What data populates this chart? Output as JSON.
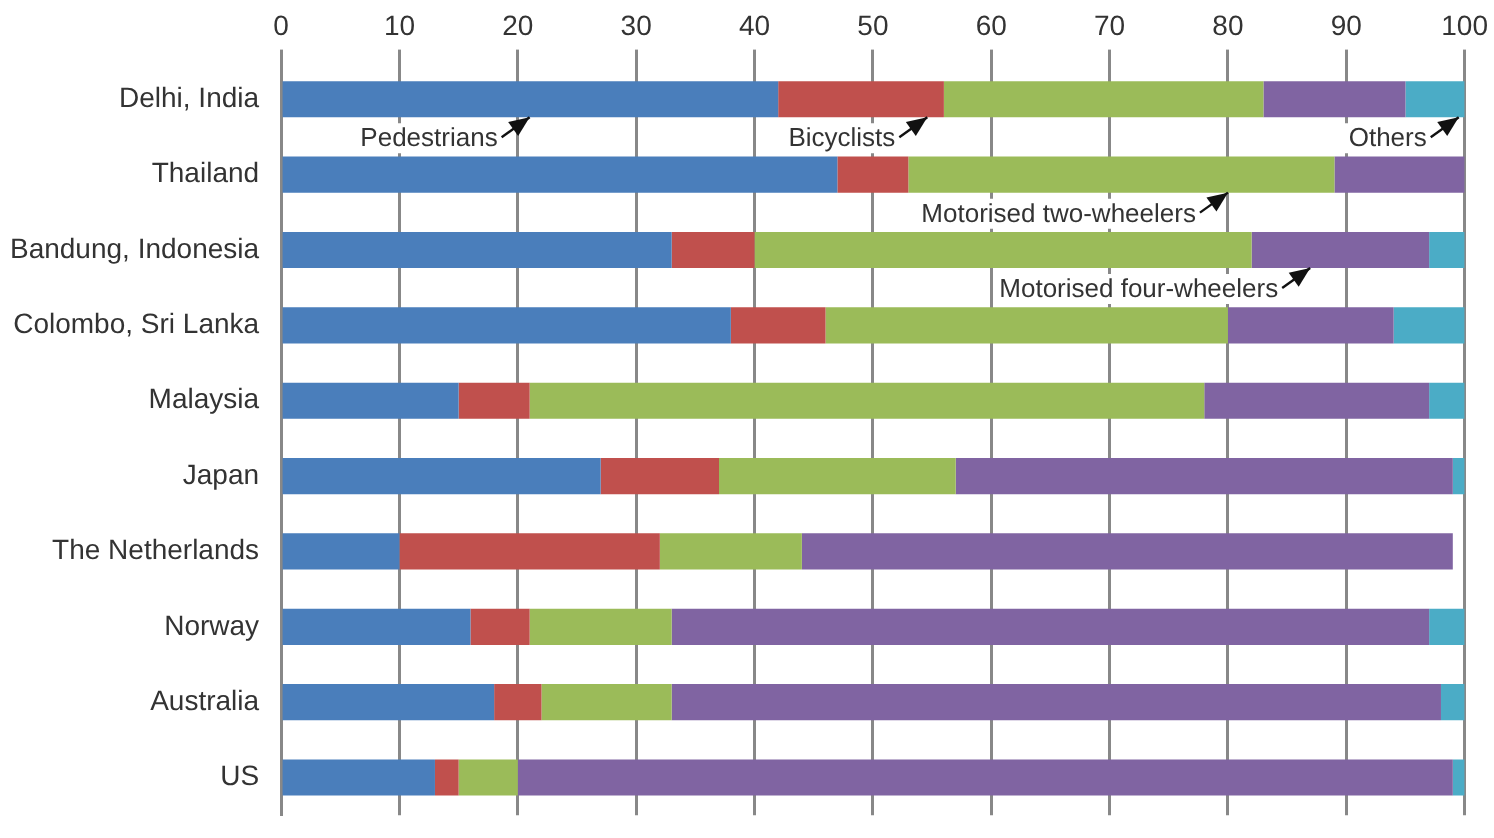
{
  "chart_data": {
    "type": "bar",
    "orientation": "horizontal",
    "stacked": true,
    "categories": [
      "Delhi, India",
      "Thailand",
      "Bandung, Indonesia",
      "Colombo, Sri Lanka",
      "Malaysia",
      "Japan",
      "The Netherlands",
      "Norway",
      "Australia",
      "US"
    ],
    "series": [
      {
        "name": "Pedestrians",
        "color": "#4a7ebb",
        "values": [
          42,
          47,
          33,
          38,
          15,
          27,
          10,
          16,
          18,
          13
        ]
      },
      {
        "name": "Bicyclists",
        "color": "#c0504d",
        "values": [
          14,
          6,
          7,
          8,
          6,
          10,
          22,
          5,
          4,
          2
        ]
      },
      {
        "name": "Motorised two-wheelers",
        "color": "#9bbb59",
        "values": [
          27,
          36,
          42,
          34,
          57,
          20,
          12,
          12,
          11,
          5
        ]
      },
      {
        "name": "Motorised four-wheelers",
        "color": "#8064a2",
        "values": [
          12,
          11,
          15,
          14,
          19,
          42,
          55,
          64,
          65,
          79
        ]
      },
      {
        "name": "Others",
        "color": "#4bacc6",
        "values": [
          5,
          0,
          3,
          6,
          3,
          1,
          0,
          3,
          2,
          1
        ]
      }
    ],
    "xlim": [
      0,
      100
    ],
    "xticks": [
      0,
      10,
      20,
      30,
      40,
      50,
      60,
      70,
      80,
      90,
      100
    ],
    "grid": "x",
    "legend": false
  }
}
